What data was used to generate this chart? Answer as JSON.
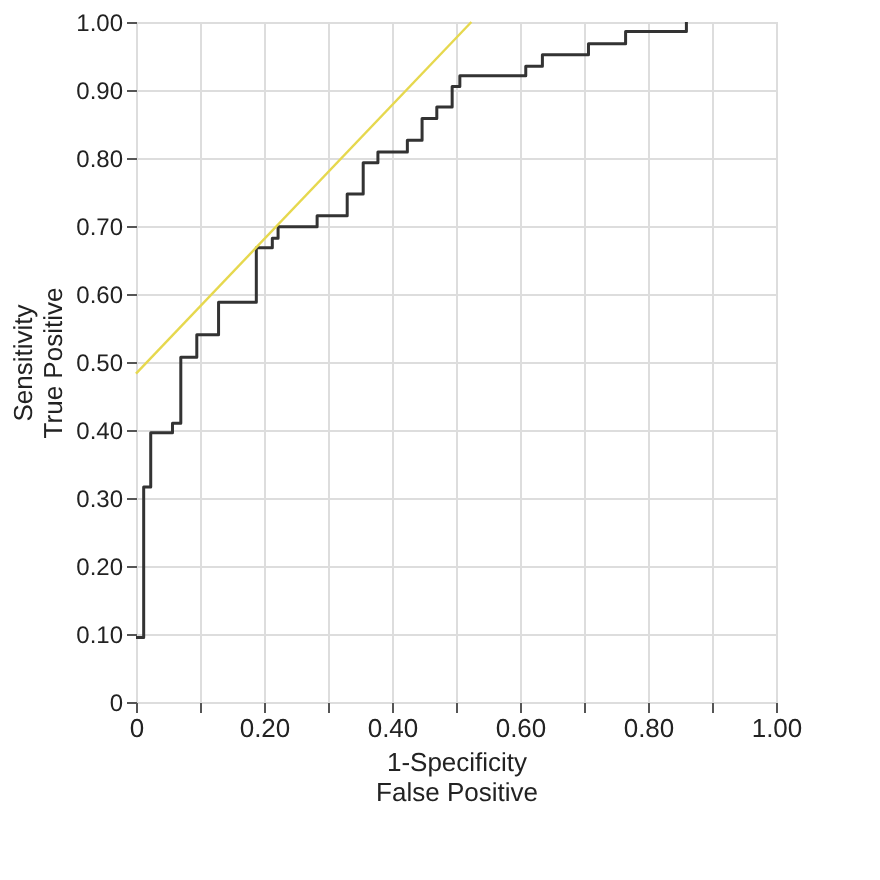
{
  "chart_data": {
    "type": "step",
    "xlabel": "1-Specificity\nFalse Positive",
    "ylabel": "Sensitivity\nTrue Positive",
    "xlim": [
      0,
      1
    ],
    "ylim": [
      0,
      1
    ],
    "xticks": [
      {
        "value": 0,
        "label": "0"
      },
      {
        "value": 0.1,
        "label": null
      },
      {
        "value": 0.2,
        "label": "0.20"
      },
      {
        "value": 0.3,
        "label": null
      },
      {
        "value": 0.4,
        "label": "0.40"
      },
      {
        "value": 0.5,
        "label": null
      },
      {
        "value": 0.6,
        "label": "0.60"
      },
      {
        "value": 0.7,
        "label": null
      },
      {
        "value": 0.8,
        "label": "0.80"
      },
      {
        "value": 0.9,
        "label": null
      },
      {
        "value": 1,
        "label": "1.00"
      }
    ],
    "yticks": [
      {
        "value": 0,
        "label": "0"
      },
      {
        "value": 0.1,
        "label": "0.10"
      },
      {
        "value": 0.2,
        "label": "0.20"
      },
      {
        "value": 0.3,
        "label": "0.30"
      },
      {
        "value": 0.4,
        "label": "0.40"
      },
      {
        "value": 0.5,
        "label": "0.50"
      },
      {
        "value": 0.6,
        "label": "0.60"
      },
      {
        "value": 0.7,
        "label": "0.70"
      },
      {
        "value": 0.8,
        "label": "0.80"
      },
      {
        "value": 0.9,
        "label": "0.90"
      },
      {
        "value": 1,
        "label": "1.00"
      }
    ],
    "grid": true,
    "series": [
      {
        "color": "#333333",
        "x": [
          0,
          0.012,
          0.023,
          0.057,
          0.07,
          0.095,
          0.129,
          0.188,
          0.213,
          0.222,
          0.283,
          0.33,
          0.355,
          0.378,
          0.424,
          0.447,
          0.47,
          0.494,
          0.506,
          0.609,
          0.635,
          0.707,
          0.765,
          0.86
        ],
        "values": [
          0.095,
          0.316,
          0.396,
          0.41,
          0.507,
          0.54,
          0.588,
          0.668,
          0.682,
          0.699,
          0.715,
          0.747,
          0.793,
          0.809,
          0.826,
          0.858,
          0.875,
          0.905,
          0.921,
          0.935,
          0.952,
          0.968,
          0.986,
          1.0
        ]
      },
      {
        "type": "line",
        "color": "#e6d84e",
        "x": [
          0,
          0.524
        ],
        "values": [
          0.483,
          1.0
        ]
      }
    ]
  }
}
